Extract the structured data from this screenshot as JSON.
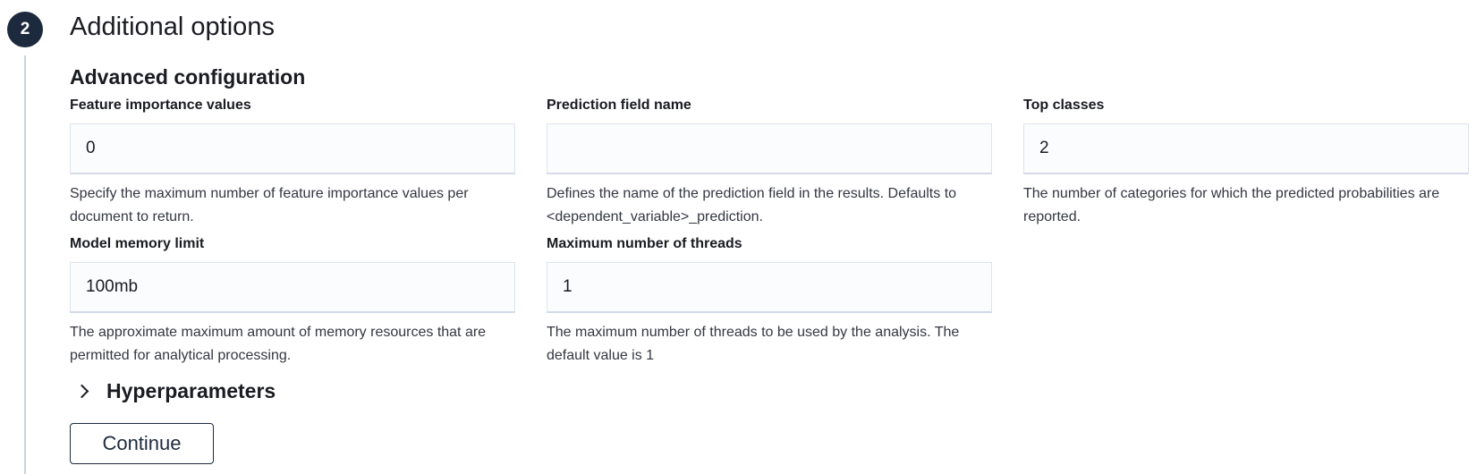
{
  "step": {
    "number": "2",
    "title": "Additional options"
  },
  "section": {
    "title": "Advanced configuration"
  },
  "fields": {
    "feature_importance": {
      "label": "Feature importance values",
      "value": "0",
      "help": "Specify the maximum number of feature importance values per document to return."
    },
    "prediction_field": {
      "label": "Prediction field name",
      "value": "",
      "help": "Defines the name of the prediction field in the results. Defaults to <dependent_variable>_prediction."
    },
    "top_classes": {
      "label": "Top classes",
      "value": "2",
      "help": "The number of categories for which the predicted probabilities are reported."
    },
    "model_memory": {
      "label": "Model memory limit",
      "value": "100mb",
      "help": "The approximate maximum amount of memory resources that are permitted for analytical processing."
    },
    "max_threads": {
      "label": "Maximum number of threads",
      "value": "1",
      "help": "The maximum number of threads to be used by the analysis. The default value is 1"
    }
  },
  "accordion": {
    "label": "Hyperparameters",
    "icon": "chevron-right-icon"
  },
  "buttons": {
    "continue_label": "Continue"
  },
  "colors": {
    "step_circle": "#1d2a3e",
    "step_line": "#c8d3e3",
    "input_background": "#fbfcfd"
  }
}
